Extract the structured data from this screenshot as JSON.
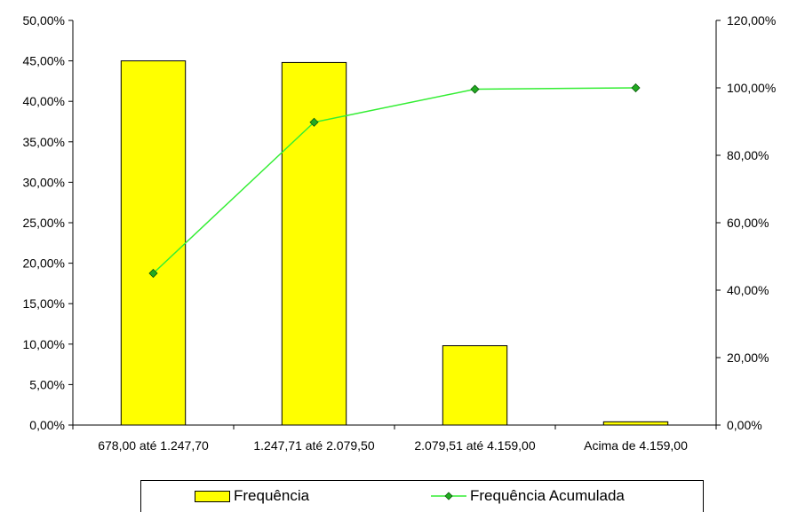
{
  "chart_data": {
    "type": "bar",
    "categories": [
      "678,00 até 1.247,70",
      "1.247,71 até 2.079,50",
      "2.079,51 até 4.159,00",
      "Acima de 4.159,00"
    ],
    "series": [
      {
        "name": "Frequência",
        "type": "bar",
        "axis": "left",
        "values": [
          45.0,
          44.8,
          9.8,
          0.4
        ],
        "color": "#ffff00"
      },
      {
        "name": "Frequência Acumulada",
        "type": "line",
        "axis": "right",
        "values": [
          45.0,
          89.8,
          99.6,
          100.0
        ],
        "color": "#33ee33",
        "marker_color": "#22aa22"
      }
    ],
    "y_left": {
      "min": 0,
      "max": 50,
      "step": 5,
      "tick_labels": [
        "0,00%",
        "5,00%",
        "10,00%",
        "15,00%",
        "20,00%",
        "25,00%",
        "30,00%",
        "35,00%",
        "40,00%",
        "45,00%",
        "50,00%"
      ]
    },
    "y_right": {
      "min": 0,
      "max": 120,
      "step": 20,
      "tick_labels": [
        "0,00%",
        "20,00%",
        "40,00%",
        "60,00%",
        "80,00%",
        "100,00%",
        "120,00%"
      ]
    },
    "title": "",
    "xlabel": "",
    "ylabel": "",
    "grid": false,
    "legend_position": "bottom"
  },
  "legend": {
    "bar_label": "Frequência",
    "line_label": "Frequência Acumulada"
  }
}
